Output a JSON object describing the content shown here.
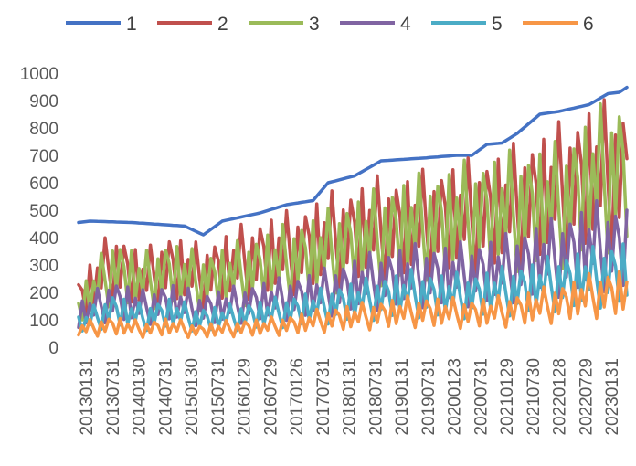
{
  "chart_data": {
    "type": "line",
    "title": "",
    "xlabel": "",
    "ylabel": "",
    "ylim": [
      0,
      1000
    ],
    "yticks": [
      "0",
      "100",
      "200",
      "300",
      "400",
      "500",
      "600",
      "700",
      "800",
      "900",
      "1000"
    ],
    "x_tick_labels": [
      "20130131",
      "20130731",
      "20140130",
      "20140731",
      "20150130",
      "20150731",
      "20160129",
      "20160729",
      "20170126",
      "20170731",
      "20180131",
      "20180731",
      "20190131",
      "20190731",
      "20200123",
      "20200731",
      "20210129",
      "20210730",
      "20220128",
      "20220729",
      "20230131"
    ],
    "grid": false,
    "legend_position": "top",
    "series": [
      {
        "name": "1",
        "color": "#4472C4",
        "anchors": [
          [
            0,
            455
          ],
          [
            3,
            460
          ],
          [
            14,
            455
          ],
          [
            28,
            442
          ],
          [
            33,
            410
          ],
          [
            38,
            460
          ],
          [
            48,
            490
          ],
          [
            55,
            520
          ],
          [
            62,
            535
          ],
          [
            66,
            600
          ],
          [
            73,
            625
          ],
          [
            80,
            680
          ],
          [
            91,
            690
          ],
          [
            100,
            700
          ],
          [
            104,
            700
          ],
          [
            108,
            740
          ],
          [
            112,
            745
          ],
          [
            116,
            780
          ],
          [
            122,
            850
          ],
          [
            127,
            860
          ],
          [
            135,
            885
          ],
          [
            140,
            925
          ],
          [
            143,
            930
          ],
          [
            145,
            948
          ]
        ]
      },
      {
        "name": "2",
        "color": "#C0504D",
        "noise": [
          -1,
          1
        ],
        "anchors": [
          [
            0,
            240
          ],
          [
            9,
            420
          ],
          [
            17,
            335
          ],
          [
            24,
            405
          ],
          [
            32,
            360
          ],
          [
            40,
            410
          ],
          [
            48,
            455
          ],
          [
            57,
            480
          ],
          [
            64,
            530
          ],
          [
            72,
            565
          ],
          [
            80,
            600
          ],
          [
            88,
            605
          ],
          [
            96,
            640
          ],
          [
            104,
            660
          ],
          [
            112,
            690
          ],
          [
            120,
            740
          ],
          [
            128,
            790
          ],
          [
            136,
            860
          ],
          [
            145,
            860
          ]
        ]
      },
      {
        "name": "3",
        "color": "#9BBB59",
        "noise": [
          -1,
          1
        ],
        "anchors": [
          [
            0,
            200
          ],
          [
            9,
            390
          ],
          [
            17,
            330
          ],
          [
            24,
            380
          ],
          [
            32,
            330
          ],
          [
            40,
            360
          ],
          [
            48,
            400
          ],
          [
            57,
            440
          ],
          [
            64,
            470
          ],
          [
            72,
            520
          ],
          [
            80,
            560
          ],
          [
            88,
            600
          ],
          [
            96,
            620
          ],
          [
            104,
            660
          ],
          [
            112,
            680
          ],
          [
            120,
            700
          ],
          [
            128,
            720
          ],
          [
            136,
            830
          ],
          [
            145,
            900
          ]
        ]
      },
      {
        "name": "4",
        "color": "#8064A2",
        "noise": [
          -1,
          1
        ],
        "anchors": [
          [
            0,
            160
          ],
          [
            9,
            240
          ],
          [
            17,
            200
          ],
          [
            24,
            230
          ],
          [
            32,
            190
          ],
          [
            40,
            210
          ],
          [
            48,
            230
          ],
          [
            57,
            250
          ],
          [
            64,
            270
          ],
          [
            72,
            310
          ],
          [
            80,
            340
          ],
          [
            88,
            360
          ],
          [
            96,
            360
          ],
          [
            104,
            370
          ],
          [
            112,
            390
          ],
          [
            120,
            430
          ],
          [
            128,
            460
          ],
          [
            136,
            510
          ],
          [
            145,
            500
          ]
        ]
      },
      {
        "name": "5",
        "color": "#4BACC6",
        "noise": [
          -1,
          1
        ],
        "anchors": [
          [
            0,
            110
          ],
          [
            9,
            190
          ],
          [
            17,
            150
          ],
          [
            24,
            175
          ],
          [
            32,
            140
          ],
          [
            40,
            150
          ],
          [
            48,
            165
          ],
          [
            57,
            185
          ],
          [
            64,
            205
          ],
          [
            72,
            230
          ],
          [
            80,
            250
          ],
          [
            88,
            270
          ],
          [
            96,
            260
          ],
          [
            104,
            260
          ],
          [
            112,
            280
          ],
          [
            120,
            300
          ],
          [
            128,
            330
          ],
          [
            136,
            350
          ],
          [
            145,
            380
          ]
        ]
      },
      {
        "name": "6",
        "color": "#F79646",
        "noise": [
          -1,
          1
        ],
        "anchors": [
          [
            0,
            90
          ],
          [
            9,
            110
          ],
          [
            17,
            90
          ],
          [
            24,
            105
          ],
          [
            32,
            80
          ],
          [
            40,
            95
          ],
          [
            48,
            100
          ],
          [
            57,
            115
          ],
          [
            64,
            135
          ],
          [
            72,
            150
          ],
          [
            80,
            165
          ],
          [
            88,
            180
          ],
          [
            96,
            175
          ],
          [
            104,
            170
          ],
          [
            112,
            180
          ],
          [
            120,
            200
          ],
          [
            128,
            225
          ],
          [
            136,
            260
          ],
          [
            145,
            280
          ]
        ]
      }
    ]
  }
}
